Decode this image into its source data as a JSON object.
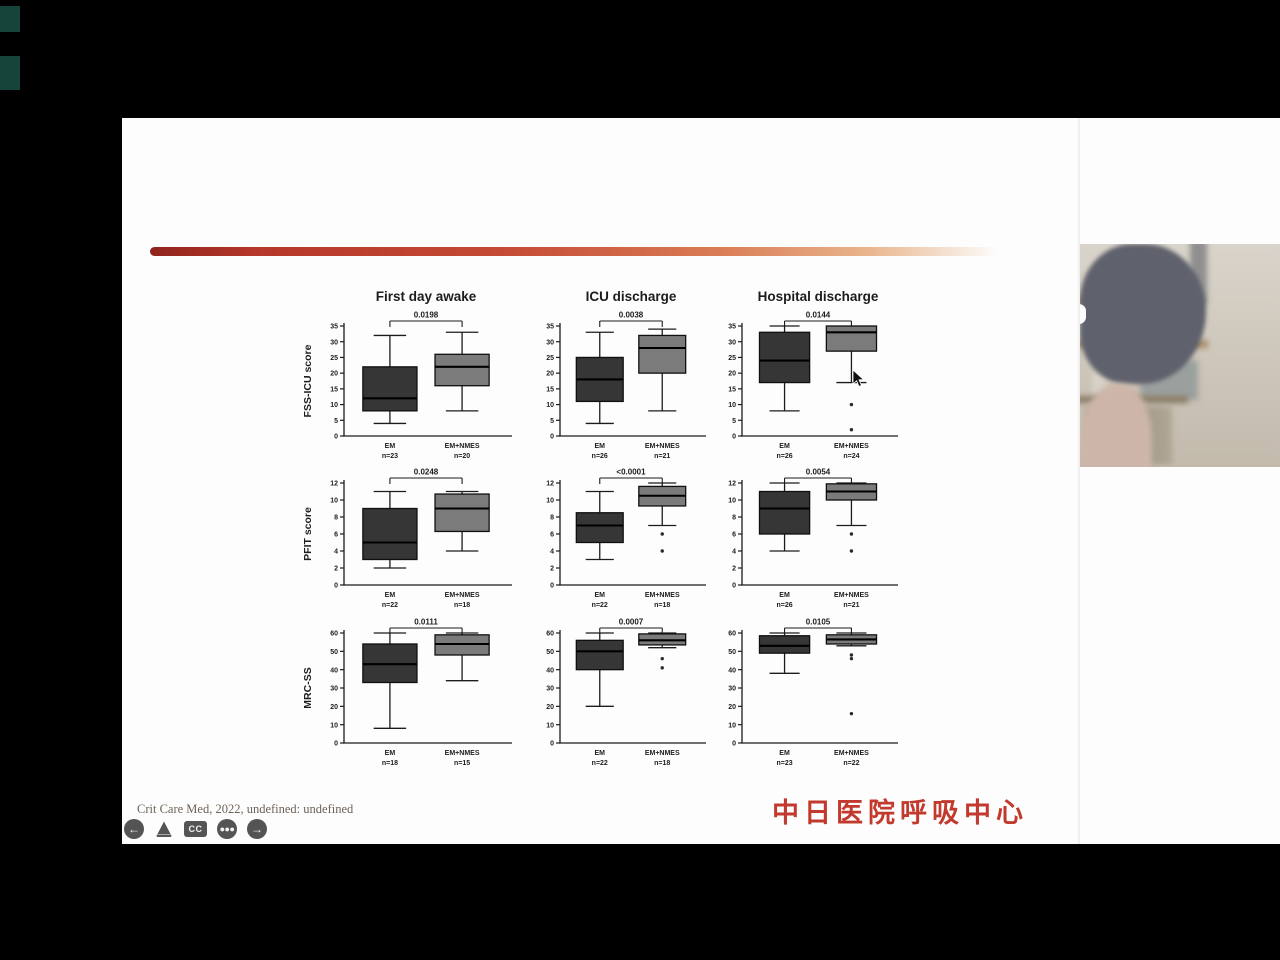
{
  "video": {
    "citation": "Crit Care Med, 2022, undefined: undefined",
    "toolbar": {
      "back_icon": "←",
      "forward_icon": "→",
      "cc_label": "CC",
      "more_icon": "●●●"
    },
    "logo_text": "中日医院呼吸中心"
  },
  "chart_meta": {
    "group_colors": {
      "EM": "#363636",
      "EM+NMES": "#7b7b7b"
    },
    "ink_color": "#1c1c1c",
    "accent_color": "#b5372a",
    "column_titles": [
      "First day awake",
      "ICU discharge",
      "Hospital discharge"
    ],
    "row_ylabels": [
      "FSS-ICU score",
      "PFIT score",
      "MRC-SS"
    ]
  },
  "chart_data": [
    {
      "type": "boxplot",
      "title": "First day awake",
      "ylabel": "FSS-ICU score",
      "ymax": 35,
      "yticks": [
        0,
        5,
        10,
        15,
        20,
        25,
        30,
        35
      ],
      "p_value": "0.0198",
      "groups": [
        {
          "label": "EM",
          "n": "n=23",
          "low": 4,
          "q1": 8,
          "median": 12,
          "q3": 22,
          "high": 32,
          "outliers": []
        },
        {
          "label": "EM+NMES",
          "n": "n=20",
          "low": 8,
          "q1": 16,
          "median": 22,
          "q3": 26,
          "high": 33,
          "outliers": []
        }
      ]
    },
    {
      "type": "boxplot",
      "title": "ICU discharge",
      "ylabel": "",
      "ymax": 35,
      "yticks": [
        0,
        5,
        10,
        15,
        20,
        25,
        30,
        35
      ],
      "p_value": "0.0038",
      "groups": [
        {
          "label": "EM",
          "n": "n=26",
          "low": 4,
          "q1": 11,
          "median": 18,
          "q3": 25,
          "high": 33,
          "outliers": []
        },
        {
          "label": "EM+NMES",
          "n": "n=21",
          "low": 8,
          "q1": 20,
          "median": 28,
          "q3": 32,
          "high": 34,
          "outliers": []
        }
      ]
    },
    {
      "type": "boxplot",
      "title": "Hospital discharge",
      "ylabel": "",
      "ymax": 35,
      "yticks": [
        0,
        5,
        10,
        15,
        20,
        25,
        30,
        35
      ],
      "p_value": "0.0144",
      "groups": [
        {
          "label": "EM",
          "n": "n=26",
          "low": 8,
          "q1": 17,
          "median": 24,
          "q3": 33,
          "high": 35,
          "outliers": []
        },
        {
          "label": "EM+NMES",
          "n": "n=24",
          "low": 17,
          "q1": 27,
          "median": 33,
          "q3": 35,
          "high": 35,
          "outliers": [
            10,
            2
          ]
        }
      ]
    },
    {
      "type": "boxplot",
      "title": "",
      "ylabel": "PFIT score",
      "ymax": 12,
      "yticks": [
        0,
        2,
        4,
        6,
        8,
        10,
        12
      ],
      "p_value": "0.0248",
      "groups": [
        {
          "label": "EM",
          "n": "n=22",
          "low": 2,
          "q1": 3,
          "median": 5,
          "q3": 9,
          "high": 11,
          "outliers": []
        },
        {
          "label": "EM+NMES",
          "n": "n=18",
          "low": 4,
          "q1": 6.3,
          "median": 9,
          "q3": 10.7,
          "high": 11,
          "outliers": []
        }
      ]
    },
    {
      "type": "boxplot",
      "title": "",
      "ylabel": "",
      "ymax": 12,
      "yticks": [
        0,
        2,
        4,
        6,
        8,
        10,
        12
      ],
      "p_value": "<0.0001",
      "groups": [
        {
          "label": "EM",
          "n": "n=22",
          "low": 3,
          "q1": 5,
          "median": 7,
          "q3": 8.5,
          "high": 11,
          "outliers": []
        },
        {
          "label": "EM+NMES",
          "n": "n=18",
          "low": 7,
          "q1": 9.3,
          "median": 10.5,
          "q3": 11.6,
          "high": 12,
          "outliers": [
            6,
            4
          ]
        }
      ]
    },
    {
      "type": "boxplot",
      "title": "",
      "ylabel": "",
      "ymax": 12,
      "yticks": [
        0,
        2,
        4,
        6,
        8,
        10,
        12
      ],
      "p_value": "0.0054",
      "groups": [
        {
          "label": "EM",
          "n": "n=26",
          "low": 4,
          "q1": 6,
          "median": 9,
          "q3": 11,
          "high": 12,
          "outliers": []
        },
        {
          "label": "EM+NMES",
          "n": "n=21",
          "low": 7,
          "q1": 10,
          "median": 11,
          "q3": 11.9,
          "high": 12,
          "outliers": [
            6,
            4
          ]
        }
      ]
    },
    {
      "type": "boxplot",
      "title": "",
      "ylabel": "MRC-SS",
      "ymax": 60,
      "yticks": [
        0,
        10,
        20,
        30,
        40,
        50,
        60
      ],
      "p_value": "0.0111",
      "groups": [
        {
          "label": "EM",
          "n": "n=18",
          "low": 8,
          "q1": 33,
          "median": 43,
          "q3": 54,
          "high": 60,
          "outliers": []
        },
        {
          "label": "EM+NMES",
          "n": "n=15",
          "low": 34,
          "q1": 48,
          "median": 54,
          "q3": 59,
          "high": 60,
          "outliers": []
        }
      ]
    },
    {
      "type": "boxplot",
      "title": "",
      "ylabel": "",
      "ymax": 60,
      "yticks": [
        0,
        10,
        20,
        30,
        40,
        50,
        60
      ],
      "p_value": "0.0007",
      "groups": [
        {
          "label": "EM",
          "n": "n=22",
          "low": 20,
          "q1": 40,
          "median": 50,
          "q3": 56,
          "high": 60,
          "outliers": []
        },
        {
          "label": "EM+NMES",
          "n": "n=18",
          "low": 52,
          "q1": 53.5,
          "median": 56,
          "q3": 59.5,
          "high": 60,
          "outliers": [
            46,
            41
          ]
        }
      ]
    },
    {
      "type": "boxplot",
      "title": "",
      "ylabel": "",
      "ymax": 60,
      "yticks": [
        0,
        10,
        20,
        30,
        40,
        50,
        60
      ],
      "p_value": "0.0105",
      "groups": [
        {
          "label": "EM",
          "n": "n=23",
          "low": 38,
          "q1": 49,
          "median": 53,
          "q3": 58.5,
          "high": 60,
          "outliers": []
        },
        {
          "label": "EM+NMES",
          "n": "n=22",
          "low": 53,
          "q1": 54,
          "median": 56.5,
          "q3": 59,
          "high": 60,
          "outliers": [
            48,
            46,
            16
          ]
        }
      ]
    }
  ]
}
